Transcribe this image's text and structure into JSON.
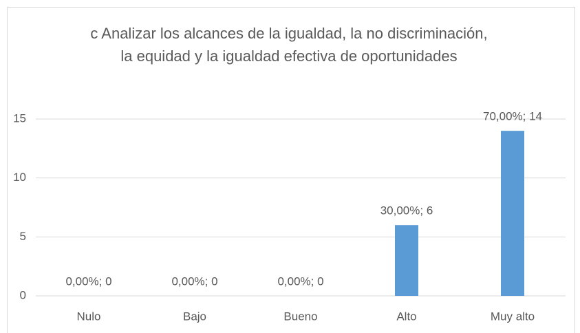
{
  "chart_data": {
    "type": "bar",
    "title": "c Analizar los alcances de la igualdad, la no discriminación, la equidad y la igualdad efectiva de oportunidades",
    "categories": [
      "Nulo",
      "Bajo",
      "Bueno",
      "Alto",
      "Muy alto"
    ],
    "values": [
      0,
      0,
      0,
      6,
      14
    ],
    "value_labels": [
      "0,00%; 0",
      "0,00%; 0",
      "0,00%; 0",
      "30,00%; 6",
      "70,00%; 14"
    ],
    "color": "#5b9bd5",
    "ylim": [
      0,
      15
    ],
    "yticks": [
      0,
      5,
      10,
      15
    ],
    "grid": true
  }
}
